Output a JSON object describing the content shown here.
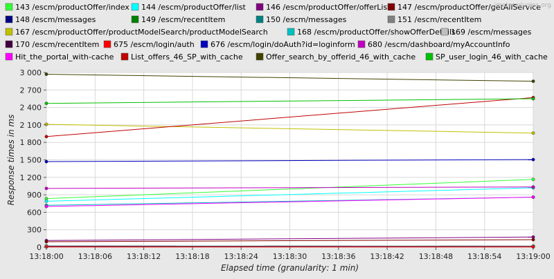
{
  "chart_data": {
    "type": "line",
    "x": [
      "13:18:00",
      "13:19:00"
    ],
    "x_ticks": [
      "13:18:00",
      "13:18:06",
      "13:18:12",
      "13:18:18",
      "13:18:24",
      "13:18:30",
      "13:18:36",
      "13:18:42",
      "13:18:48",
      "13:18:54",
      "13:19:00"
    ],
    "y_ticks": [
      "0",
      "300",
      "600",
      "900",
      "1 200",
      "1 500",
      "1 800",
      "2 100",
      "2 400",
      "2 700",
      "3 000"
    ],
    "xlabel": "Elapsed time (granularity: 1 min)",
    "ylabel": "Response times in ms",
    "ylim": [
      0,
      3000
    ],
    "grid": true,
    "legend_position": "top",
    "watermark": "jmeter-plugins.org",
    "series": [
      {
        "name": "143 /escm/productOffer/index",
        "color": "#33ff33",
        "values": [
          835,
          1165
        ]
      },
      {
        "name": "144 /escm/productOffer/list",
        "color": "#00ffff",
        "values": [
          790,
          1020
        ]
      },
      {
        "name": "146 /escm/productOffer/offerList",
        "color": "#800080",
        "values": [
          115,
          175
        ]
      },
      {
        "name": "147 /escm/productOffer/getAllService",
        "color": "#800000",
        "values": [
          95,
          130
        ]
      },
      {
        "name": "148 /escm/messages",
        "color": "#000080",
        "values": [
          20,
          15
        ]
      },
      {
        "name": "149 /escm/recentItem",
        "color": "#008000",
        "values": [
          10,
          10
        ]
      },
      {
        "name": "150 /escm/messages",
        "color": "#008080",
        "values": [
          25,
          20
        ]
      },
      {
        "name": "151 /escm/recentItem",
        "color": "#808080",
        "values": [
          15,
          10
        ]
      },
      {
        "name": "167 /escm/productOffer/productModelSearch/productModelSearch",
        "color": "#c0c000",
        "values": [
          2110,
          1960
        ]
      },
      {
        "name": "168 /escm/productOffer/showOfferDetails",
        "color": "#00c0c0",
        "values": [
          720,
          860
        ]
      },
      {
        "name": "169 /escm/messages",
        "color": "#c0c0c0",
        "values": [
          30,
          25
        ]
      },
      {
        "name": "170 /escm/recentItem",
        "color": "#400040",
        "values": [
          10,
          10
        ]
      },
      {
        "name": "675 /escm/login/auth",
        "color": "#ff0000",
        "values": [
          5,
          5
        ]
      },
      {
        "name": "676 /escm/login/doAuth?id=loginform",
        "color": "#0000c0",
        "values": [
          1470,
          1505
        ]
      },
      {
        "name": "680 /escm/dashboard/myAccountInfo",
        "color": "#c000c0",
        "values": [
          1010,
          1035
        ]
      },
      {
        "name": "Hit_the_portal_with-cache",
        "color": "#ff00ff",
        "values": [
          700,
          860
        ]
      },
      {
        "name": "List_offers_46_SP_with_cache",
        "color": "#c00000",
        "values": [
          1900,
          2570
        ]
      },
      {
        "name": "Offer_search_by_offerid_46_with_cache",
        "color": "#404000",
        "values": [
          2970,
          2850
        ]
      },
      {
        "name": "SP_user_login_46_with_cache",
        "color": "#00c000",
        "values": [
          2470,
          2550
        ]
      }
    ]
  }
}
